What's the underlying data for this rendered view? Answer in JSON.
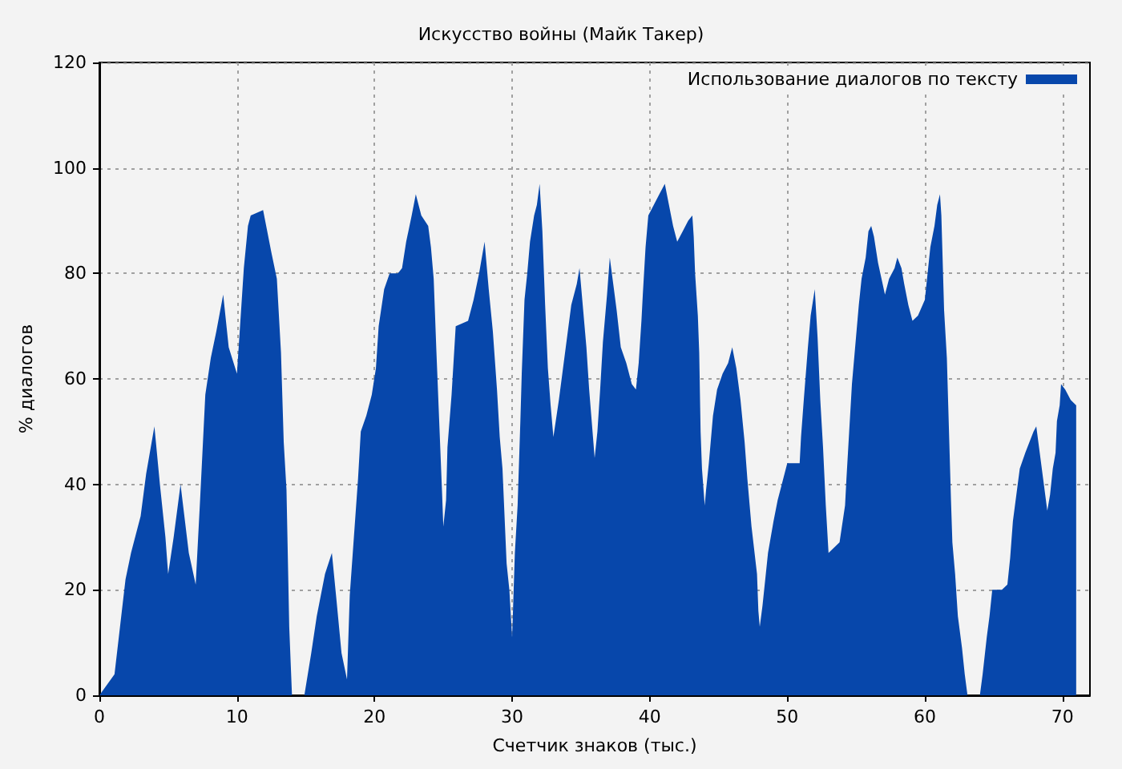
{
  "chart_data": {
    "type": "area",
    "title": "Искусство войны (Майк Такер)",
    "xlabel": "Счетчик знаков (тыс.)",
    "ylabel": "% диалогов",
    "x": [
      0,
      1.1,
      1.5,
      1.9,
      2.3,
      3.0,
      3.4,
      4.0,
      4.4,
      4.8,
      5.0,
      5.4,
      5.9,
      6.5,
      7.0,
      7.3,
      7.7,
      8.1,
      8.5,
      9.0,
      9.4,
      10.0,
      10.2,
      10.5,
      10.8,
      11.0,
      11.9,
      12.5,
      12.9,
      13.2,
      13.4,
      13.6,
      13.8,
      14.0,
      14.9,
      15.4,
      15.8,
      16.4,
      16.9,
      17.2,
      17.6,
      18.0,
      18.2,
      18.5,
      18.8,
      19.0,
      19.4,
      19.8,
      20.1,
      20.3,
      20.7,
      21.1,
      21.7,
      22.0,
      22.3,
      22.7,
      23.0,
      23.4,
      23.9,
      24.1,
      24.3,
      24.5,
      24.7,
      24.9,
      25.0,
      25.2,
      25.3,
      25.6,
      25.9,
      26.8,
      27.2,
      27.6,
      28.0,
      28.3,
      28.6,
      28.9,
      29.1,
      29.3,
      29.6,
      29.8,
      30.0,
      30.1,
      30.2,
      30.4,
      30.6,
      30.7,
      30.9,
      31.1,
      31.3,
      31.6,
      31.8,
      32.0,
      32.2,
      32.4,
      32.6,
      32.8,
      33.0,
      33.4,
      33.7,
      34.0,
      34.3,
      34.7,
      34.9,
      35.1,
      35.4,
      35.6,
      36.0,
      36.2,
      36.4,
      36.6,
      36.9,
      37.1,
      37.4,
      37.6,
      37.9,
      38.3,
      38.7,
      39.0,
      39.2,
      39.4,
      39.5,
      39.7,
      39.9,
      40.3,
      40.7,
      41.1,
      41.4,
      41.7,
      42.0,
      42.4,
      42.8,
      43.1,
      43.2,
      43.3,
      43.5,
      43.6,
      43.7,
      43.8,
      44.0,
      44.1,
      44.3,
      44.6,
      44.9,
      45.3,
      45.7,
      46.0,
      46.3,
      46.6,
      46.9,
      47.1,
      47.4,
      47.8,
      47.9,
      48.0,
      48.2,
      48.4,
      48.6,
      49.0,
      49.3,
      49.6,
      50.0,
      50.9,
      51.0,
      51.2,
      51.5,
      51.7,
      52.0,
      52.2,
      52.4,
      52.6,
      52.8,
      53.0,
      53.8,
      54.2,
      54.3,
      54.5,
      54.7,
      55.0,
      55.2,
      55.4,
      55.7,
      55.9,
      56.1,
      56.3,
      56.6,
      57.1,
      57.4,
      57.8,
      58.0,
      58.3,
      58.5,
      58.8,
      59.1,
      59.5,
      60.0,
      60.2,
      60.4,
      60.7,
      60.9,
      61.1,
      61.2,
      61.3,
      61.4,
      61.6,
      61.7,
      61.8,
      61.9,
      62.0,
      62.2,
      62.4,
      62.7,
      62.9,
      63.1,
      64.0,
      64.2,
      64.5,
      64.7,
      64.9,
      65.6,
      66.0,
      66.2,
      66.4,
      66.7,
      66.9,
      67.3,
      67.6,
      67.9,
      68.1,
      68.3,
      68.6,
      68.9,
      69.1,
      69.3,
      69.5,
      69.6,
      69.8,
      69.9,
      70.2,
      70.6,
      71.0
    ],
    "series": [
      {
        "name": "Использование диалогов по тексту",
        "color": "#0747ab",
        "values": [
          0,
          4,
          13,
          22,
          27,
          34,
          42,
          51,
          40,
          30,
          23,
          30,
          40,
          27,
          21,
          36,
          57,
          64,
          69,
          76,
          66,
          61,
          69,
          81,
          89,
          91,
          92,
          84,
          79,
          65,
          48,
          39,
          13,
          0,
          0,
          8,
          15,
          23,
          27,
          19,
          8,
          3,
          19,
          30,
          41,
          50,
          53,
          57,
          62,
          70,
          77,
          80,
          80,
          81,
          86,
          91,
          95,
          91,
          89,
          85,
          79,
          65,
          52,
          39,
          32,
          37,
          47,
          57,
          70,
          71,
          75,
          80,
          86,
          77,
          69,
          58,
          49,
          43,
          25,
          20,
          11,
          19,
          27,
          36,
          52,
          61,
          75,
          80,
          86,
          91,
          93,
          97,
          88,
          74,
          62,
          55,
          49,
          56,
          62,
          68,
          74,
          78,
          81,
          75,
          66,
          58,
          45,
          50,
          58,
          67,
          76,
          83,
          77,
          73,
          66,
          63,
          59,
          58,
          63,
          71,
          76,
          85,
          91,
          93,
          95,
          97,
          93,
          89,
          86,
          88,
          90,
          91,
          87,
          80,
          72,
          65,
          50,
          43,
          36,
          39,
          44,
          53,
          58,
          61,
          63,
          66,
          62,
          56,
          48,
          41,
          32,
          23,
          16,
          13,
          17,
          22,
          27,
          33,
          37,
          40,
          44,
          44,
          49,
          56,
          66,
          72,
          77,
          68,
          56,
          47,
          36,
          27,
          29,
          36,
          41,
          50,
          59,
          68,
          74,
          79,
          83,
          88,
          89,
          87,
          82,
          76,
          79,
          81,
          83,
          81,
          78,
          74,
          71,
          72,
          75,
          80,
          85,
          89,
          93,
          95,
          91,
          82,
          73,
          64,
          55,
          46,
          37,
          29,
          23,
          15,
          9,
          4,
          0,
          0,
          4,
          11,
          15,
          20,
          20,
          21,
          26,
          33,
          39,
          43,
          46,
          48,
          50,
          51,
          47,
          41,
          35,
          38,
          43,
          46,
          52,
          55,
          59,
          58,
          56,
          55
        ]
      }
    ],
    "xlim": [
      0,
      72
    ],
    "xticks": [
      0,
      10,
      20,
      30,
      40,
      50,
      60,
      70
    ],
    "ylim": [
      0,
      120
    ],
    "yticks": [
      0,
      20,
      40,
      60,
      80,
      100,
      120
    ],
    "grid": true,
    "legend": "top right"
  }
}
